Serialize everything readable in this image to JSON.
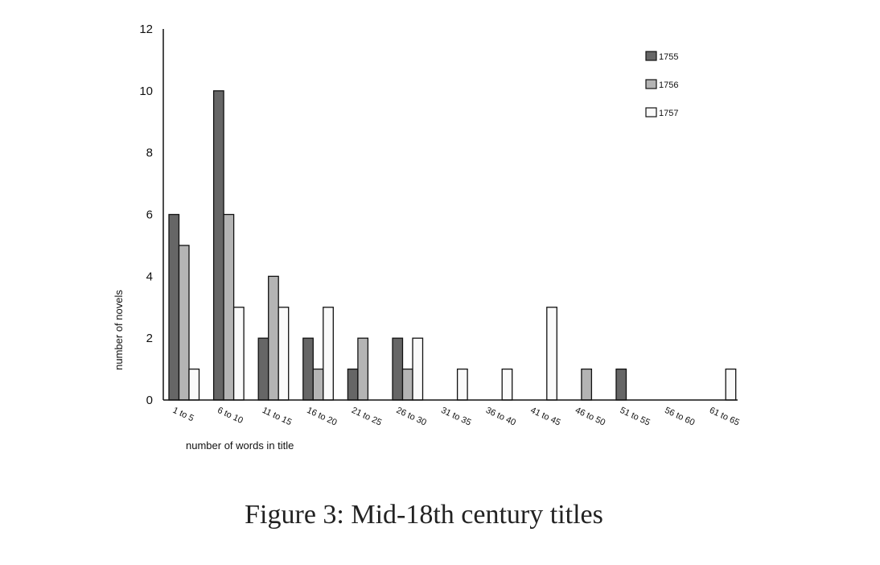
{
  "chart_data": {
    "type": "bar",
    "categories": [
      "1 to 5",
      "6 to 10",
      "11 to 15",
      "16 to 20",
      "21 to 25",
      "26 to 30",
      "31 to 35",
      "36 to 40",
      "41 to 45",
      "46 to 50",
      "51 to 55",
      "56 to 60",
      "61 to 65"
    ],
    "series": [
      {
        "name": "1755",
        "color": "#666666",
        "values": [
          6,
          10,
          2,
          2,
          1,
          2,
          0,
          0,
          0,
          0,
          1,
          0,
          0
        ]
      },
      {
        "name": "1756",
        "color": "#b4b4b4",
        "values": [
          5,
          6,
          4,
          1,
          2,
          1,
          0,
          0,
          0,
          1,
          0,
          0,
          0
        ]
      },
      {
        "name": "1757",
        "color": "#fafafa",
        "values": [
          1,
          3,
          3,
          3,
          0,
          2,
          1,
          1,
          3,
          0,
          0,
          0,
          1
        ]
      }
    ],
    "xlabel": "number of words in title",
    "ylabel": "number of novels",
    "ylim": [
      0,
      12
    ],
    "yticks": [
      0,
      2,
      4,
      6,
      8,
      10,
      12
    ],
    "grid": false,
    "legend_position": "top-right"
  },
  "caption": "Figure 3: Mid-18th century titles"
}
